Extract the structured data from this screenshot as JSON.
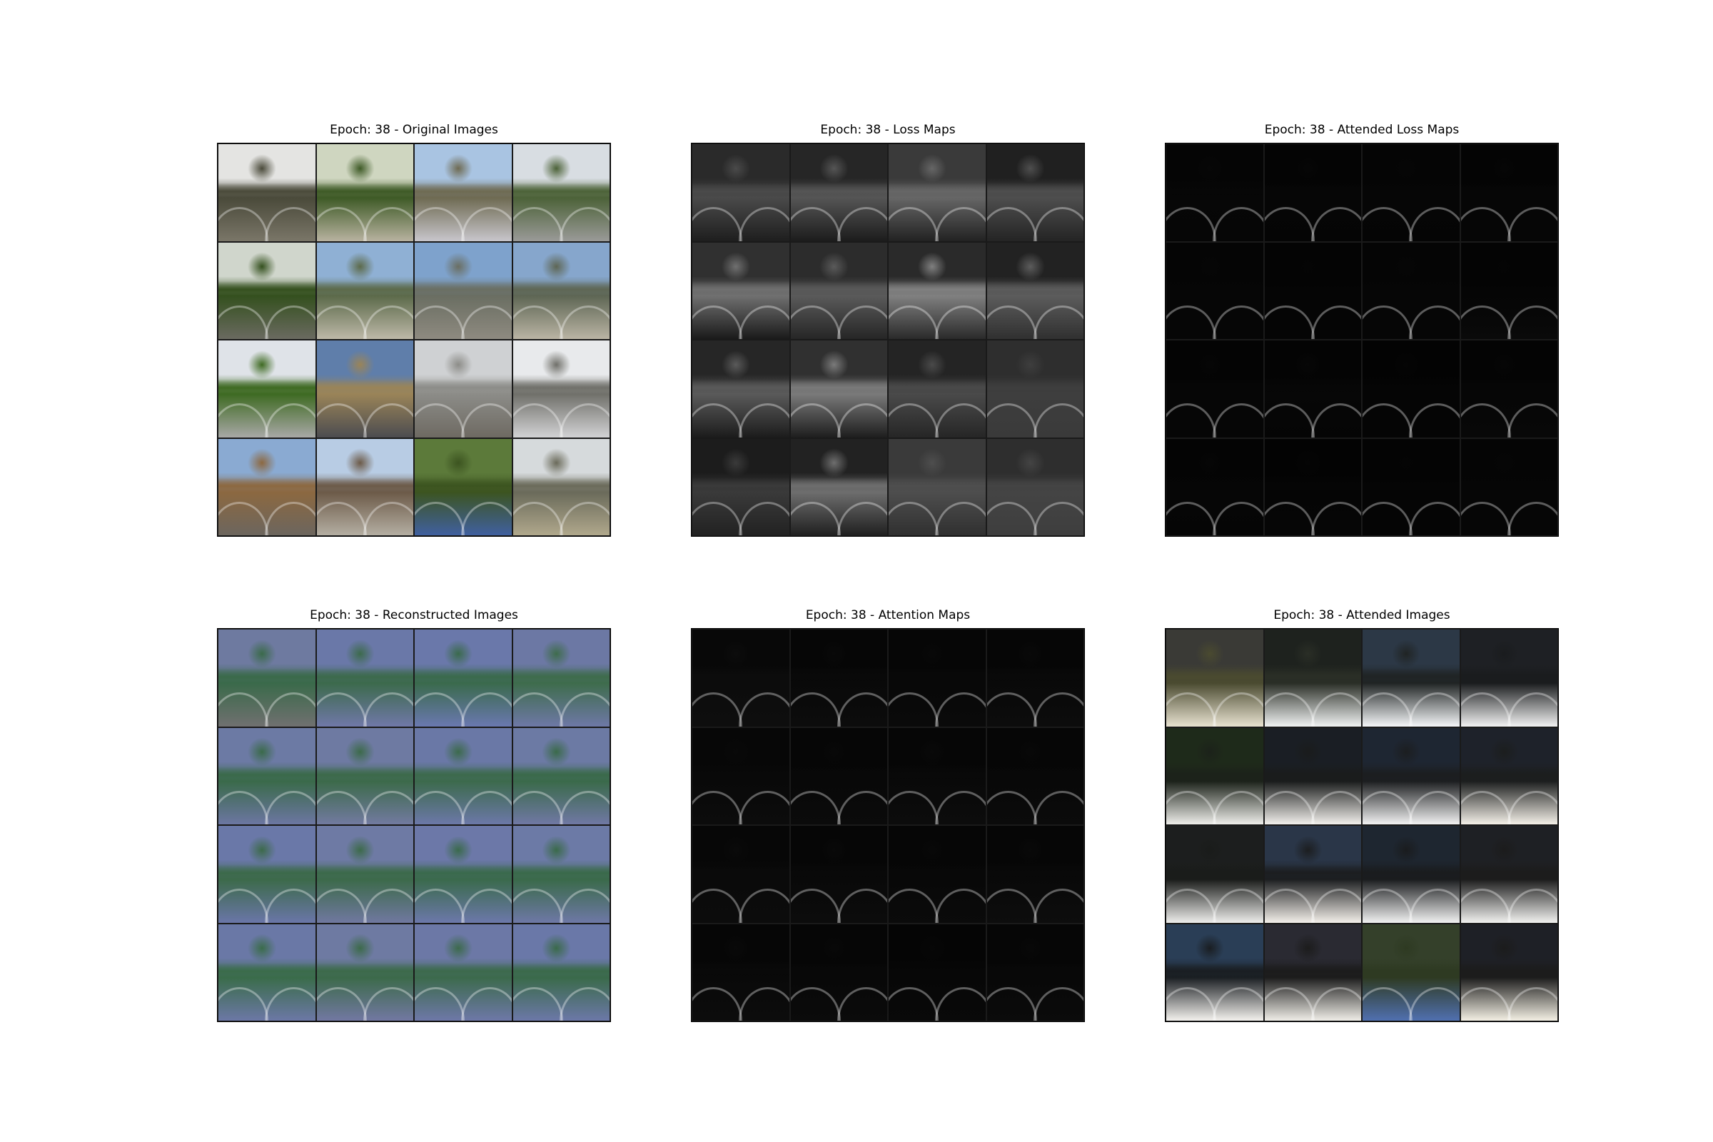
{
  "figure": {
    "panels": [
      {
        "id": "original-images",
        "title": "Epoch: 38 - Original Images",
        "tiles": [
          {
            "sky": "#e4e4e2",
            "mid": "#4a4a3a",
            "ground": "#7a7668"
          },
          {
            "sky": "#cfd6c0",
            "mid": "#3e5a26",
            "ground": "#b8b2a0"
          },
          {
            "sky": "#a9c4e2",
            "mid": "#6e6a52",
            "ground": "#c8c6cc"
          },
          {
            "sky": "#d8dde2",
            "mid": "#4c6238",
            "ground": "#9a9a98"
          },
          {
            "sky": "#d0d6cc",
            "mid": "#34501e",
            "ground": "#6a6a60"
          },
          {
            "sky": "#8fb0d4",
            "mid": "#5c6a4a",
            "ground": "#bdb8a8"
          },
          {
            "sky": "#7ea2cc",
            "mid": "#6a6e62",
            "ground": "#8e8a80"
          },
          {
            "sky": "#86a6cc",
            "mid": "#5e6654",
            "ground": "#bab4a4"
          },
          {
            "sky": "#dfe3e8",
            "mid": "#3e6a22",
            "ground": "#a8a8a6"
          },
          {
            "sky": "#5f7eaa",
            "mid": "#9a8458",
            "ground": "#4c4c50"
          },
          {
            "sky": "#cfd1d3",
            "mid": "#8c8c88",
            "ground": "#6e6a62"
          },
          {
            "sky": "#e8eaec",
            "mid": "#70706a",
            "ground": "#d2d2d4"
          },
          {
            "sky": "#8aaad2",
            "mid": "#8c6840",
            "ground": "#6c665e"
          },
          {
            "sky": "#b8cce4",
            "mid": "#6c5a48",
            "ground": "#b4aea2"
          },
          {
            "sky": "#5c7a3a",
            "mid": "#3c5420",
            "ground": "#4060a0"
          },
          {
            "sky": "#d6dadc",
            "mid": "#6a6a5a",
            "ground": "#b0a88c"
          }
        ]
      },
      {
        "id": "loss-maps",
        "title": "Epoch: 38 - Loss Maps",
        "tiles": [
          {
            "sky": "#2a2a2a",
            "mid": "#4a4a4a",
            "ground": "#1e1e1e"
          },
          {
            "sky": "#262626",
            "mid": "#555555",
            "ground": "#1c1c1c"
          },
          {
            "sky": "#3a3a3a",
            "mid": "#666666",
            "ground": "#222222"
          },
          {
            "sky": "#202020",
            "mid": "#4e4e4e",
            "ground": "#242424"
          },
          {
            "sky": "#303030",
            "mid": "#707070",
            "ground": "#1a1a1a"
          },
          {
            "sky": "#2c2c2c",
            "mid": "#5a5a5a",
            "ground": "#262626"
          },
          {
            "sky": "#2a2a2a",
            "mid": "#808080",
            "ground": "#2a2a2a"
          },
          {
            "sky": "#222222",
            "mid": "#5c5c5c",
            "ground": "#303030"
          },
          {
            "sky": "#262626",
            "mid": "#5a5a5a",
            "ground": "#1c1c1c"
          },
          {
            "sky": "#303030",
            "mid": "#7a7a7a",
            "ground": "#1e1e1e"
          },
          {
            "sky": "#242424",
            "mid": "#4a4a4a",
            "ground": "#262626"
          },
          {
            "sky": "#2e2e2e",
            "mid": "#3e3e3e",
            "ground": "#3a3a3a"
          },
          {
            "sky": "#1c1c1c",
            "mid": "#3a3a3a",
            "ground": "#222222"
          },
          {
            "sky": "#222222",
            "mid": "#6e6e6e",
            "ground": "#202020"
          },
          {
            "sky": "#3a3a3a",
            "mid": "#4e4e4e",
            "ground": "#303030"
          },
          {
            "sky": "#2e2e2e",
            "mid": "#444444",
            "ground": "#3e3e3e"
          }
        ]
      },
      {
        "id": "attended-loss-maps",
        "title": "Epoch: 38 - Attended Loss Maps",
        "tiles": [
          {
            "sky": "#050505",
            "mid": "#070707",
            "ground": "#060606"
          },
          {
            "sky": "#040404",
            "mid": "#060606",
            "ground": "#050505"
          },
          {
            "sky": "#050505",
            "mid": "#060606",
            "ground": "#050505"
          },
          {
            "sky": "#040404",
            "mid": "#060606",
            "ground": "#060606"
          },
          {
            "sky": "#050505",
            "mid": "#060606",
            "ground": "#060606"
          },
          {
            "sky": "#040404",
            "mid": "#050505",
            "ground": "#050505"
          },
          {
            "sky": "#050505",
            "mid": "#060606",
            "ground": "#060606"
          },
          {
            "sky": "#040404",
            "mid": "#050505",
            "ground": "#0a0a0a"
          },
          {
            "sky": "#040404",
            "mid": "#060606",
            "ground": "#060606"
          },
          {
            "sky": "#040404",
            "mid": "#070707",
            "ground": "#050505"
          },
          {
            "sky": "#030303",
            "mid": "#050505",
            "ground": "#050505"
          },
          {
            "sky": "#040404",
            "mid": "#060606",
            "ground": "#080808"
          },
          {
            "sky": "#040404",
            "mid": "#060606",
            "ground": "#050505"
          },
          {
            "sky": "#030303",
            "mid": "#050505",
            "ground": "#060606"
          },
          {
            "sky": "#040404",
            "mid": "#050505",
            "ground": "#050505"
          },
          {
            "sky": "#050505",
            "mid": "#060606",
            "ground": "#060606"
          }
        ]
      },
      {
        "id": "reconstructed-images",
        "title": "Epoch: 38 - Reconstructed Images",
        "tiles": [
          {
            "sky": "#6e7aa0",
            "mid": "#3a6a4a",
            "ground": "#707070"
          },
          {
            "sky": "#6a78a8",
            "mid": "#3c6a4c",
            "ground": "#7078a8"
          },
          {
            "sky": "#6a78aa",
            "mid": "#3a6a4c",
            "ground": "#6a78b0"
          },
          {
            "sky": "#6c78a4",
            "mid": "#3e6c4c",
            "ground": "#6e78a6"
          },
          {
            "sky": "#6c7aa4",
            "mid": "#3a6a4a",
            "ground": "#6c76a2"
          },
          {
            "sky": "#6e7aa2",
            "mid": "#3c6a4a",
            "ground": "#727aa0"
          },
          {
            "sky": "#6a78a6",
            "mid": "#3c6a4c",
            "ground": "#6c78a8"
          },
          {
            "sky": "#6c7aa4",
            "mid": "#3a6a4a",
            "ground": "#7078a4"
          },
          {
            "sky": "#6a78a8",
            "mid": "#3c6a4a",
            "ground": "#6a76a8"
          },
          {
            "sky": "#6e7aa4",
            "mid": "#3c6a4a",
            "ground": "#7078a0"
          },
          {
            "sky": "#6c78a8",
            "mid": "#3a6a4c",
            "ground": "#6c78aa"
          },
          {
            "sky": "#6c7aa6",
            "mid": "#3a6a4a",
            "ground": "#6e78a6"
          },
          {
            "sky": "#6a78a6",
            "mid": "#3a6c4a",
            "ground": "#6c78a6"
          },
          {
            "sky": "#6e7aa2",
            "mid": "#3c6a4a",
            "ground": "#7278a2"
          },
          {
            "sky": "#6c78a6",
            "mid": "#3c6a4c",
            "ground": "#6e78a8"
          },
          {
            "sky": "#6a78a8",
            "mid": "#3a6a4a",
            "ground": "#6c78a8"
          }
        ]
      },
      {
        "id": "attention-maps",
        "title": "Epoch: 38 - Attention Maps",
        "tiles": [
          {
            "sky": "#080808",
            "mid": "#0c0c0c",
            "ground": "#0e0e0e"
          },
          {
            "sky": "#060606",
            "mid": "#090909",
            "ground": "#0c0c0c"
          },
          {
            "sky": "#060606",
            "mid": "#080808",
            "ground": "#0a0a0a"
          },
          {
            "sky": "#060606",
            "mid": "#090909",
            "ground": "#0c0c0c"
          },
          {
            "sky": "#070707",
            "mid": "#090909",
            "ground": "#0c0c0c"
          },
          {
            "sky": "#060606",
            "mid": "#080808",
            "ground": "#0b0b0b"
          },
          {
            "sky": "#060606",
            "mid": "#090909",
            "ground": "#0c0c0c"
          },
          {
            "sky": "#060606",
            "mid": "#080808",
            "ground": "#0b0b0b"
          },
          {
            "sky": "#070707",
            "mid": "#0a0a0a",
            "ground": "#0c0c0c"
          },
          {
            "sky": "#060606",
            "mid": "#090909",
            "ground": "#0c0c0c"
          },
          {
            "sky": "#060606",
            "mid": "#080808",
            "ground": "#0b0b0b"
          },
          {
            "sky": "#060606",
            "mid": "#090909",
            "ground": "#0d0d0d"
          },
          {
            "sky": "#060606",
            "mid": "#090909",
            "ground": "#0c0c0c"
          },
          {
            "sky": "#060606",
            "mid": "#080808",
            "ground": "#0b0b0b"
          },
          {
            "sky": "#050505",
            "mid": "#070707",
            "ground": "#090909"
          },
          {
            "sky": "#060606",
            "mid": "#080808",
            "ground": "#0b0b0b"
          }
        ]
      },
      {
        "id": "attended-images",
        "title": "Epoch: 38 - Attended Images",
        "tiles": [
          {
            "sky": "#3a3a36",
            "mid": "#4a4a30",
            "ground": "#e8e2d0"
          },
          {
            "sky": "#1e221e",
            "mid": "#2a2e26",
            "ground": "#f0f2f2"
          },
          {
            "sky": "#2c3846",
            "mid": "#202424",
            "ground": "#f4f6f8"
          },
          {
            "sky": "#1e2024",
            "mid": "#1a1c1e",
            "ground": "#f2f2f2"
          },
          {
            "sky": "#1e2a1a",
            "mid": "#1c221a",
            "ground": "#eeeeea"
          },
          {
            "sky": "#1a1e24",
            "mid": "#1a1c1c",
            "ground": "#f2f0ec"
          },
          {
            "sky": "#1e2632",
            "mid": "#1c1e20",
            "ground": "#f2f2f2"
          },
          {
            "sky": "#1e222a",
            "mid": "#1c1e1e",
            "ground": "#f4f0e8"
          },
          {
            "sky": "#1c1e1e",
            "mid": "#1a1c1a",
            "ground": "#eeeeec"
          },
          {
            "sky": "#2a3648",
            "mid": "#1c1e20",
            "ground": "#f4f0ea"
          },
          {
            "sky": "#1e2630",
            "mid": "#1a1c1e",
            "ground": "#f2f2f2"
          },
          {
            "sky": "#1e2024",
            "mid": "#1c1c1c",
            "ground": "#f2f2f0"
          },
          {
            "sky": "#2a3e56",
            "mid": "#1a1e22",
            "ground": "#f4f2ee"
          },
          {
            "sky": "#2a2a32",
            "mid": "#1c1c1c",
            "ground": "#f0eee8"
          },
          {
            "sky": "#34402a",
            "mid": "#2e3a22",
            "ground": "#5070b0"
          },
          {
            "sky": "#1e2026",
            "mid": "#1c1c1c",
            "ground": "#f4f0e4"
          }
        ]
      }
    ]
  }
}
